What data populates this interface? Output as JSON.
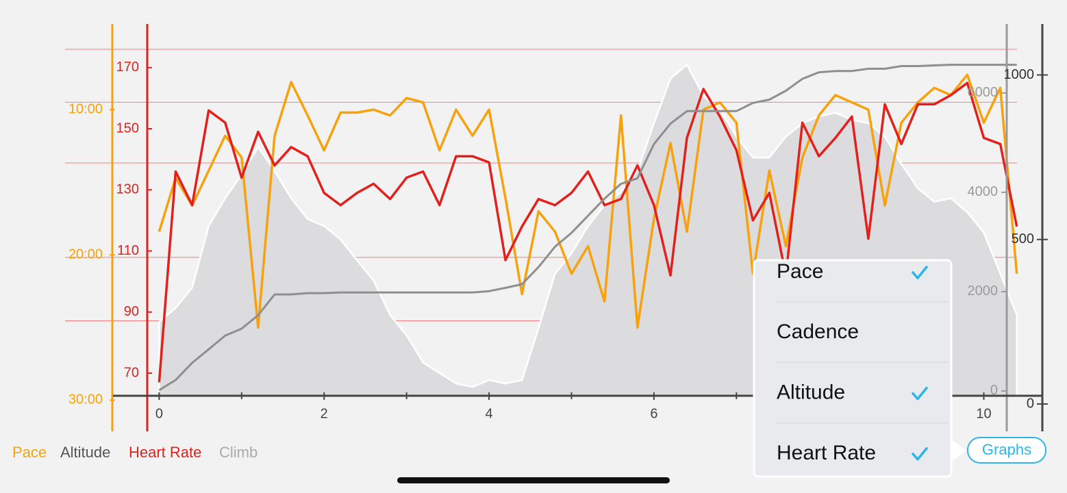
{
  "chart_data": {
    "type": "multi-axis-line",
    "x": [
      0,
      0.2,
      0.4,
      0.6,
      0.8,
      1.0,
      1.2,
      1.4,
      1.6,
      1.8,
      2.0,
      2.2,
      2.4,
      2.6,
      2.8,
      3.0,
      3.2,
      3.4,
      3.6,
      3.8,
      4.0,
      4.2,
      4.4,
      4.6,
      4.8,
      5.0,
      5.2,
      5.4,
      5.6,
      5.8,
      6.0,
      6.2,
      6.4,
      6.6,
      6.8,
      7.0,
      7.2,
      7.4,
      7.6,
      7.8,
      8.0,
      8.2,
      8.4,
      8.6,
      8.8,
      9.0,
      9.2,
      9.4,
      9.6,
      9.8,
      10.0,
      10.2,
      10.4
    ],
    "xlim": [
      -0.56,
      10.71
    ],
    "xticks": [
      0,
      2,
      4,
      6,
      8,
      10
    ],
    "xminor_ticks": [
      1,
      3,
      5,
      7,
      9
    ],
    "ylim": [
      62.6,
      184.3
    ],
    "yticks": [
      70,
      90,
      110,
      130,
      150,
      170
    ],
    "hgrid": [
      176,
      158.7,
      138.8,
      107.9,
      87.1
    ],
    "y2lim": [
      29.7,
      4.1
    ],
    "y2ticks": [
      {
        "value": 10,
        "label": "10:00"
      },
      {
        "value": 20,
        "label": "20:00"
      },
      {
        "value": 30,
        "label": "30:00"
      }
    ],
    "y3lim": [
      -97,
      7390
    ],
    "y3ticks": [
      0,
      2000,
      4000,
      6000
    ],
    "y4lim": [
      25,
      1155
    ],
    "y4ticks": [
      0,
      500,
      1000
    ],
    "series": [
      {
        "name": "Pace",
        "color": "#f7a20c",
        "axis": "y2",
        "values": [
          18.4,
          14.7,
          16.6,
          14.2,
          11.8,
          13.3,
          25.0,
          11.8,
          8.1,
          10.4,
          12.8,
          10.2,
          10.2,
          10.0,
          10.4,
          9.2,
          9.5,
          12.8,
          10.0,
          11.8,
          10.0,
          16.1,
          22.7,
          17.0,
          18.4,
          21.3,
          19.4,
          23.2,
          10.4,
          25.0,
          17.5,
          12.3,
          18.4,
          10.0,
          9.5,
          10.9,
          21.3,
          14.2,
          19.4,
          13.3,
          10.4,
          9.0,
          9.5,
          10.0,
          16.6,
          10.9,
          9.5,
          8.5,
          9.0,
          7.6,
          10.9,
          8.5,
          21.3
        ]
      },
      {
        "name": "Altitude",
        "color": "#dcdcde",
        "axis": "y3",
        "fill": true,
        "values": [
          1390,
          1670,
          2080,
          3320,
          3880,
          4360,
          4910,
          4430,
          3880,
          3460,
          3320,
          3050,
          2630,
          2220,
          1530,
          1120,
          570,
          360,
          150,
          80,
          220,
          150,
          220,
          1260,
          2360,
          2770,
          3320,
          3740,
          4010,
          4430,
          5390,
          6290,
          6570,
          5940,
          5670,
          5120,
          4700,
          4700,
          5120,
          5390,
          5530,
          5600,
          5460,
          5390,
          5120,
          4570,
          4080,
          3810,
          3880,
          3600,
          3190,
          2360,
          1530
        ]
      },
      {
        "name": "Heart Rate",
        "color": "#e2201c",
        "axis": "y",
        "values": [
          67,
          136,
          125,
          156,
          152,
          134,
          149,
          138,
          144,
          141,
          129,
          125,
          129,
          132,
          127,
          134,
          136,
          125,
          141,
          141,
          139,
          107,
          118,
          127,
          125,
          129,
          136,
          125,
          127,
          138,
          125,
          102,
          147,
          163,
          154,
          143,
          120,
          129,
          102,
          152,
          141,
          147,
          154,
          114,
          158,
          145,
          158,
          158,
          161,
          165,
          147,
          145,
          118
        ]
      },
      {
        "name": "Climb",
        "color": "#8e8e8e",
        "axis": "y4",
        "values": [
          42,
          73,
          125,
          166,
          208,
          229,
          270,
          333,
          333,
          337,
          337,
          339,
          339,
          339,
          339,
          339,
          339,
          339,
          339,
          339,
          343,
          353,
          364,
          416,
          478,
          520,
          572,
          624,
          669,
          686,
          790,
          852,
          890,
          890,
          890,
          890,
          915,
          925,
          952,
          988,
          1008,
          1012,
          1012,
          1019,
          1019,
          1027,
          1027,
          1029,
          1031,
          1031,
          1031,
          1031,
          1031
        ]
      }
    ]
  },
  "ui": {
    "menu": {
      "items": [
        {
          "label": "Pace",
          "checked": true
        },
        {
          "label": "Cadence",
          "checked": false
        },
        {
          "label": "Altitude",
          "checked": true
        },
        {
          "label": "Heart Rate",
          "checked": true
        }
      ]
    },
    "button": "Graphs"
  }
}
